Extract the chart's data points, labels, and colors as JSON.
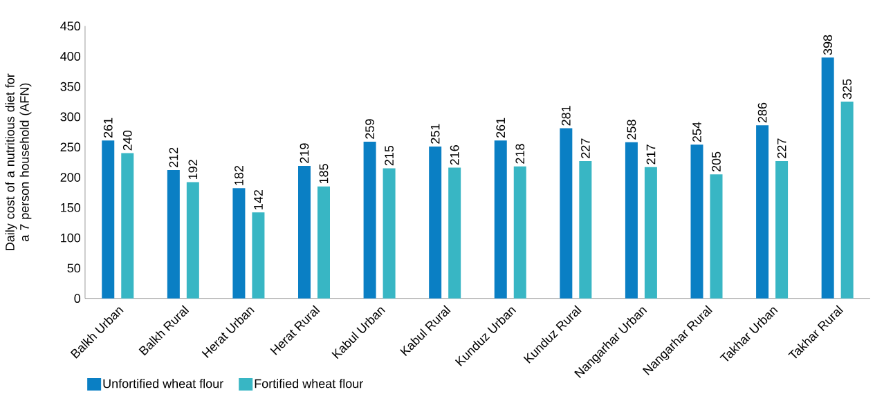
{
  "chart_data": {
    "type": "bar",
    "ylabel": "Daily cost of a nutritious diet for a 7 person household (AFN)",
    "categories": [
      "Balkh Urban",
      "Balkh Rural",
      "Herat Urban",
      "Herat Rural",
      "Kabul Urban",
      "Kabul Rural",
      "Kunduz Urban",
      "Kunduz Rural",
      "Nangarhar Urban",
      "Nangarhar Rural",
      "Takhar Urban",
      "Takhar Rural"
    ],
    "series": [
      {
        "name": "Unfortified wheat flour",
        "color": "#0a7fc4",
        "values": [
          261,
          212,
          182,
          219,
          259,
          251,
          261,
          281,
          258,
          254,
          286,
          398
        ]
      },
      {
        "name": "Fortified wheat flour",
        "color": "#38b6c4",
        "values": [
          240,
          192,
          142,
          185,
          215,
          216,
          218,
          227,
          217,
          205,
          227,
          325
        ]
      }
    ],
    "ylim": [
      0,
      450
    ],
    "yticks": [
      0,
      50,
      100,
      150,
      200,
      250,
      300,
      350,
      400,
      450
    ],
    "data_labels": true,
    "legend": "bottom left",
    "grid": false
  }
}
